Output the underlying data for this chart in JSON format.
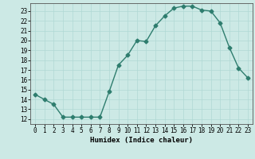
{
  "x": [
    0,
    1,
    2,
    3,
    4,
    5,
    6,
    7,
    8,
    9,
    10,
    11,
    12,
    13,
    14,
    15,
    16,
    17,
    18,
    19,
    20,
    21,
    22,
    23
  ],
  "y": [
    14.5,
    14.0,
    13.5,
    12.2,
    12.2,
    12.2,
    12.2,
    12.2,
    14.8,
    17.5,
    18.5,
    20.0,
    19.9,
    21.5,
    22.5,
    23.3,
    23.5,
    23.5,
    23.1,
    23.0,
    21.8,
    19.3,
    17.2,
    16.2
  ],
  "line_color": "#2e7d6e",
  "bg_color": "#cce9e5",
  "grid_color": "#b0d8d4",
  "xlabel": "Humidex (Indice chaleur)",
  "ylim_min": 11.5,
  "ylim_max": 23.8,
  "xlim_min": -0.5,
  "xlim_max": 23.5,
  "yticks": [
    12,
    13,
    14,
    15,
    16,
    17,
    18,
    19,
    20,
    21,
    22,
    23
  ],
  "xticks": [
    0,
    1,
    2,
    3,
    4,
    5,
    6,
    7,
    8,
    9,
    10,
    11,
    12,
    13,
    14,
    15,
    16,
    17,
    18,
    19,
    20,
    21,
    22,
    23
  ],
  "tick_fontsize": 5.5,
  "label_fontsize": 6.5,
  "marker_size": 2.5,
  "line_width": 1.0
}
